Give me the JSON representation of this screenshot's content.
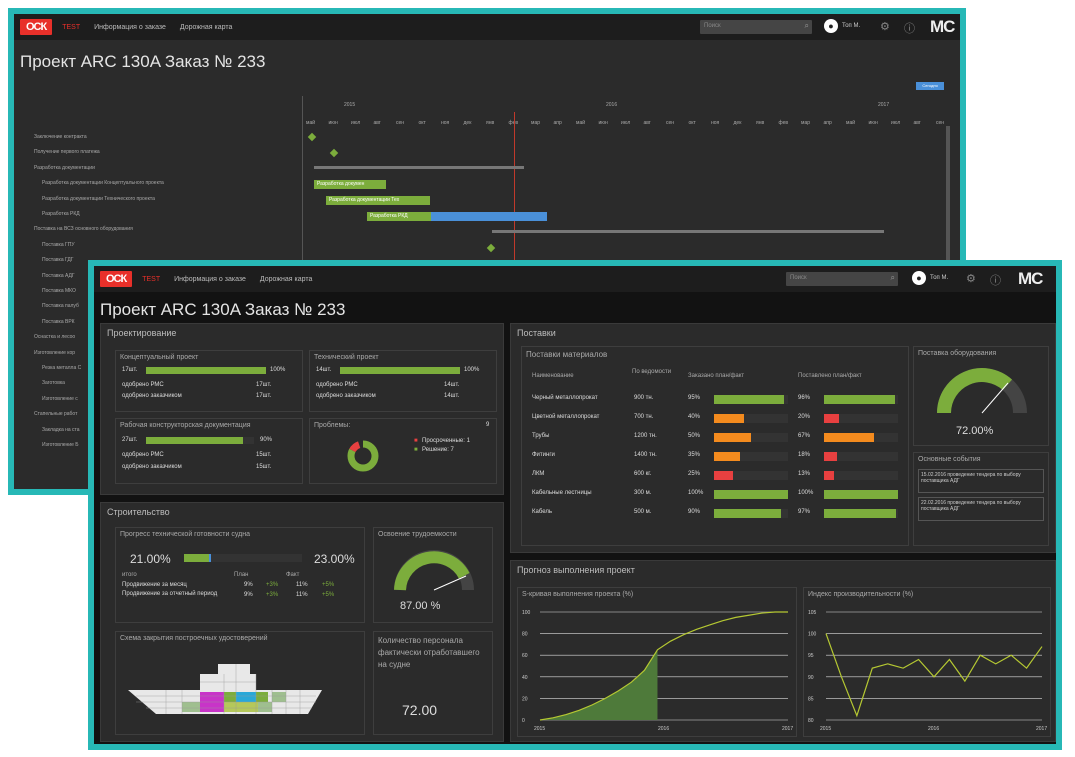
{
  "nav": {
    "logo": "ОСК",
    "test": "TEST",
    "order_info": "Информация о заказе",
    "roadmap": "Дорожная карта",
    "search_placeholder": "Поиск",
    "user": "Топ М.",
    "brand": "MC"
  },
  "title": "Проект ARC 130A Заказ № 233",
  "gantt": {
    "button": "Сегодня",
    "years": [
      "2015",
      "2016",
      "2017"
    ],
    "months": [
      "май",
      "июн",
      "июл",
      "авг",
      "сен",
      "окт",
      "ноя",
      "дек",
      "янв",
      "фев",
      "мар",
      "апр",
      "май",
      "июн",
      "июл",
      "авг",
      "сен",
      "окт",
      "ноя",
      "дек",
      "янв",
      "фев",
      "мар",
      "апр",
      "май",
      "июн",
      "июл",
      "авг",
      "сен"
    ],
    "rows": [
      "Заключение контракта",
      "Получение первого платежа",
      "Разработка документации",
      "Разработка документации Концептуального проекта",
      "Разработка документации Технического проекта",
      "Разработка РКД",
      "Поставка на ВСЗ основного оборудования",
      "Поставка ГПУ",
      "Поставка ГДГ",
      "Поставка АДГ",
      "Поставка МКО",
      "Поставка палуб",
      "Поставка ВРК",
      "Оснастка и лесоо",
      "Изготовление кор",
      "Резка металла С",
      "Заготовка",
      "Изготовление с",
      "Стапельные работ",
      "Закладка на ста",
      "Изготовление Б"
    ],
    "bar_labels": [
      "Разработка докумен",
      "Разработка документации Тех",
      "Разработка РКД"
    ]
  },
  "design": {
    "title": "Проектирование",
    "concept": {
      "title": "Концептуальный проект",
      "count": "17шт.",
      "pct": "100%",
      "value": 100,
      "rms_label": "одобрено РМС",
      "rms": "17шт.",
      "cust_label": "одобрено заказчиком",
      "cust": "17шт."
    },
    "technical": {
      "title": "Технический проект",
      "count": "14шт.",
      "pct": "100%",
      "value": 100,
      "rms_label": "одобрено РМС",
      "rms": "14шт.",
      "cust_label": "одобрено заказчиком",
      "cust": "14шт."
    },
    "working": {
      "title": "Рабочая конструкторская документация",
      "count": "27шт.",
      "pct": "90%",
      "value": 90,
      "rms_label": "одобрено РМС",
      "rms": "15шт.",
      "cust_label": "одобрено заказчиком",
      "cust": "15шт."
    },
    "problems": {
      "title": "Проблемы:",
      "count": "9",
      "overdue": "Просроченные: 1",
      "solved": "Решение: 7"
    }
  },
  "construction": {
    "title": "Строительство",
    "progress": {
      "title": "Прогресс технической готовности судна",
      "plan": "21.00%",
      "fact": "23.00%",
      "plan_value": 21,
      "fact_value": 23,
      "col_total": "итого",
      "col_plan": "План",
      "col_fact": "Факт",
      "rows": [
        {
          "label": "Продвижение за месяц",
          "plan": "9%",
          "plan_d": "+3%",
          "fact": "11%",
          "fact_d": "+5%"
        },
        {
          "label": "Продвижение за отчетный период",
          "plan": "9%",
          "plan_d": "+3%",
          "fact": "11%",
          "fact_d": "+5%"
        }
      ]
    },
    "labor": {
      "title": "Освоение трудоемкости",
      "value": "87.00 %",
      "gauge": 87
    },
    "scheme": {
      "title": "Схема закрытия построечных удостоверений"
    },
    "staff": {
      "title": "Количество персонала фактически отработавшего на судне",
      "value": "72.00"
    }
  },
  "supplies": {
    "title": "Поставки",
    "materials": {
      "title": "Поставки материалов",
      "headers": [
        "Наименование",
        "По ведомости",
        "Заказано план/факт",
        "Поставлено план/факт"
      ],
      "rows": [
        {
          "name": "Черный металлопрокат",
          "qty": "900 тн.",
          "ord": "95%",
          "ov": 95,
          "oc": "#7cad3c",
          "del": "96%",
          "dv": 96,
          "dc": "#7cad3c"
        },
        {
          "name": "Цветной металлопрокат",
          "qty": "700 тн.",
          "ord": "40%",
          "ov": 40,
          "oc": "#f48b1e",
          "del": "20%",
          "dv": 20,
          "dc": "#e84040"
        },
        {
          "name": "Трубы",
          "qty": "1200 тн.",
          "ord": "50%",
          "ov": 50,
          "oc": "#f48b1e",
          "del": "67%",
          "dv": 67,
          "dc": "#f48b1e"
        },
        {
          "name": "Фитинги",
          "qty": "1400 тн.",
          "ord": "35%",
          "ov": 35,
          "oc": "#f48b1e",
          "del": "18%",
          "dv": 18,
          "dc": "#e84040"
        },
        {
          "name": "ЛКМ",
          "qty": "600 кг.",
          "ord": "25%",
          "ov": 25,
          "oc": "#e84040",
          "del": "13%",
          "dv": 13,
          "dc": "#e84040"
        },
        {
          "name": "Кабельные лестницы",
          "qty": "300 м.",
          "ord": "100%",
          "ov": 100,
          "oc": "#7cad3c",
          "del": "100%",
          "dv": 100,
          "dc": "#7cad3c"
        },
        {
          "name": "Кабель",
          "qty": "500 м.",
          "ord": "90%",
          "ov": 90,
          "oc": "#7cad3c",
          "del": "97%",
          "dv": 97,
          "dc": "#7cad3c"
        }
      ]
    },
    "equipment": {
      "title": "Поставка оборудования",
      "value": "72.00%",
      "gauge": 72
    },
    "events": {
      "title": "Основные события",
      "items": [
        "15.02.2016 проведение тендера по выбору поставщика АДГ",
        "22.02.2016 проведение тендера по выбору поставщика АДГ"
      ]
    }
  },
  "forecast": {
    "title": "Прогноз выполнения проект"
  },
  "chart_data": [
    {
      "type": "area",
      "title": "S-кривая выполнения проекта (%)",
      "x_ticks": [
        "2015",
        "2016",
        "2017"
      ],
      "y_ticks": [
        "0",
        "20",
        "40",
        "60",
        "80",
        "100"
      ],
      "ylim": [
        0,
        100
      ],
      "series": [
        {
          "values": [
            0,
            2,
            5,
            9,
            14,
            20,
            27,
            35,
            46,
            65,
            73,
            79,
            84,
            88,
            92,
            95,
            97,
            99,
            100,
            100
          ]
        }
      ]
    },
    {
      "type": "line",
      "title": "Индекс производительности (%)",
      "x_ticks": [
        "2015",
        "2016",
        "2017"
      ],
      "y_ticks": [
        "80",
        "85",
        "90",
        "95",
        "100",
        "105"
      ],
      "ylim": [
        80,
        105
      ],
      "series": [
        {
          "values": [
            100,
            90,
            81,
            92,
            93,
            92,
            94,
            90,
            94,
            89,
            95,
            93,
            95,
            92,
            97
          ]
        }
      ]
    }
  ],
  "colors": {
    "accent": "#27b8b6",
    "green": "#7cad3c",
    "orange": "#f48b1e",
    "red": "#e84040",
    "blue": "#4a90d9",
    "brand": "#e8302a"
  }
}
